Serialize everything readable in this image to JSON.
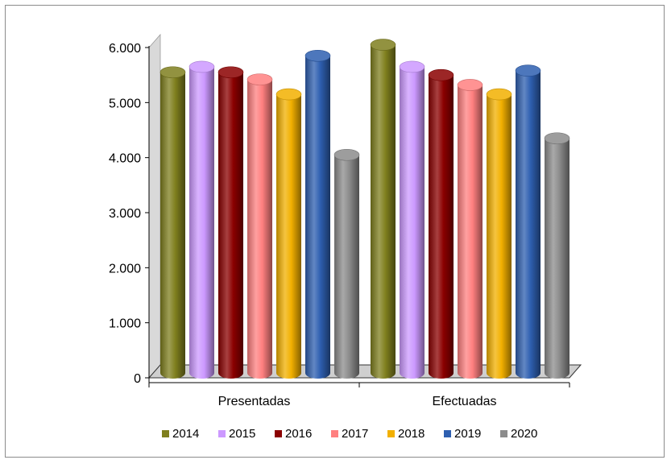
{
  "chart_data": {
    "type": "bar",
    "categories": [
      "Presentadas",
      "Efectuadas"
    ],
    "series": [
      {
        "name": "2014",
        "color": "#7f7f1e",
        "values": [
          5550,
          6050
        ]
      },
      {
        "name": "2015",
        "color": "#cc99ff",
        "values": [
          5650,
          5650
        ]
      },
      {
        "name": "2016",
        "color": "#8b0000",
        "values": [
          5550,
          5500
        ]
      },
      {
        "name": "2017",
        "color": "#ff8080",
        "values": [
          5420,
          5320
        ]
      },
      {
        "name": "2018",
        "color": "#f2b000",
        "values": [
          5150,
          5150
        ]
      },
      {
        "name": "2019",
        "color": "#2e5fb0",
        "values": [
          5850,
          5580
        ]
      },
      {
        "name": "2020",
        "color": "#8c8c8c",
        "values": [
          4050,
          4350
        ]
      }
    ],
    "ylim": [
      0,
      6000
    ],
    "yticks": [
      0,
      1000,
      2000,
      3000,
      4000,
      5000,
      6000
    ],
    "ytick_labels": [
      "0",
      "1.000",
      "2.000",
      "3.000",
      "4.000",
      "5.000",
      "6.000"
    ],
    "legend_position": "bottom",
    "grid": false,
    "style": "3d-cylinder"
  }
}
